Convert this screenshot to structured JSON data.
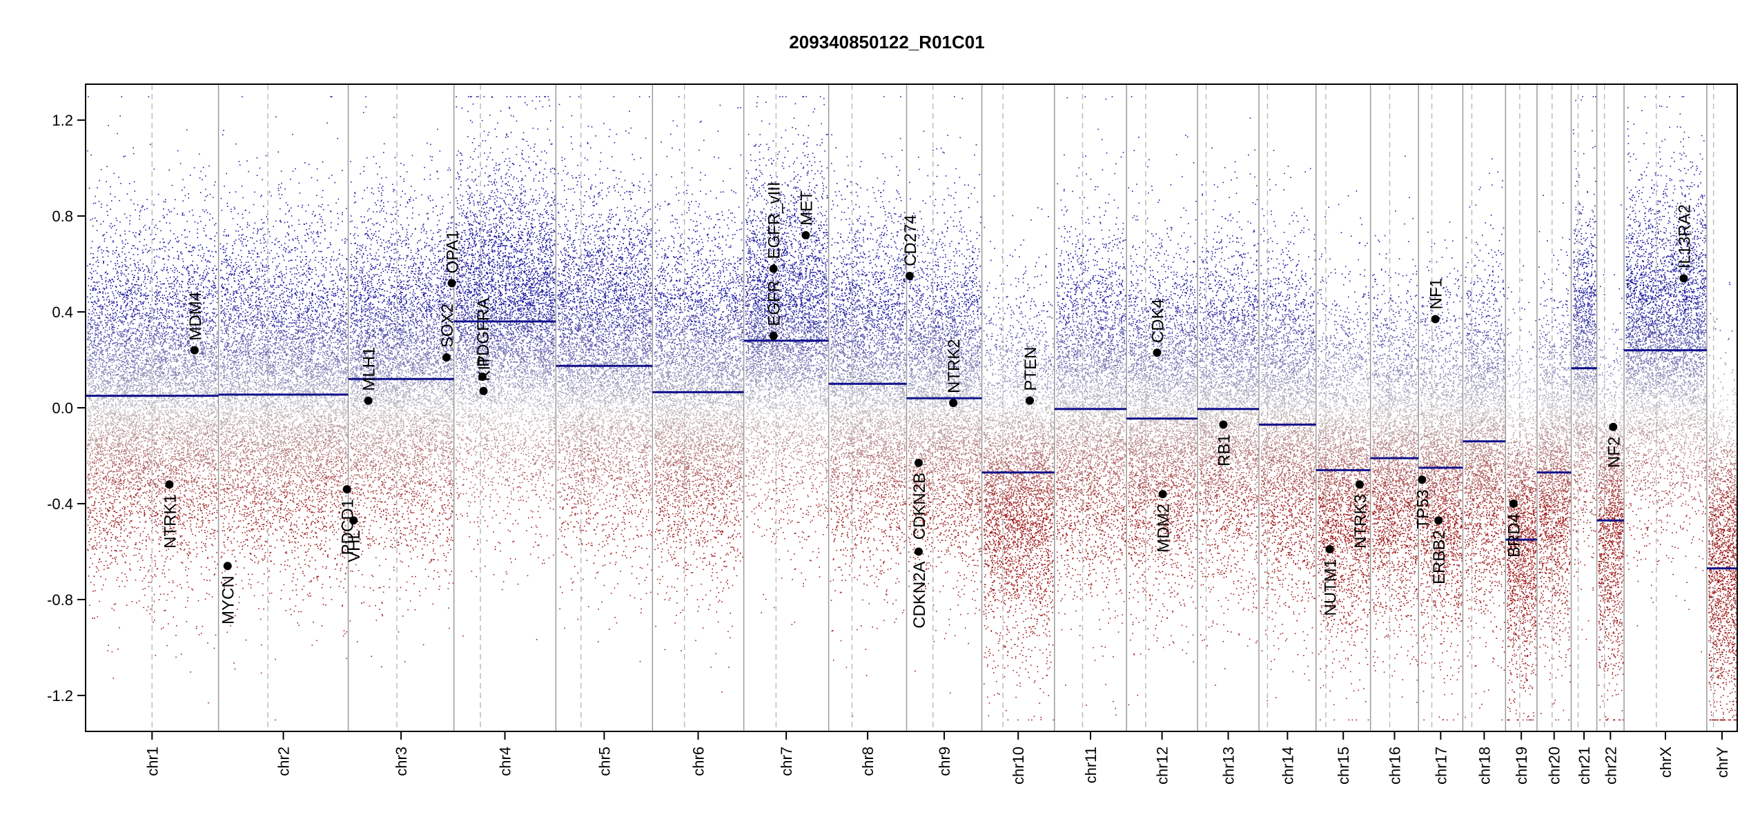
{
  "chart_data": {
    "type": "scatter",
    "title": "209340850122_R01C01",
    "xlabel": "",
    "ylabel": "",
    "ylim": [
      -1.35,
      1.35
    ],
    "yticks": [
      -1.2,
      -0.8,
      -0.4,
      0.0,
      0.4,
      0.8,
      1.2
    ],
    "ytick_labels": [
      "-1.2",
      "-0.8",
      "-0.4",
      "0.0",
      "0.4",
      "0.8",
      "1.2"
    ],
    "grid": false,
    "colors": {
      "gain": "#1a1aa0",
      "loss": "#a01a1a",
      "neutral": "#b0b0b0",
      "segment": "#10108a",
      "boundary": "#9a9a9a",
      "centromere": "#bdbdbd",
      "gene": "#000000"
    },
    "chromosomes": [
      {
        "name": "chr1",
        "size": 249,
        "cen": 0.5,
        "seg": 0.05,
        "bias": 0.05
      },
      {
        "name": "chr2",
        "size": 243,
        "cen": 0.38,
        "seg": 0.055,
        "bias": 0.05
      },
      {
        "name": "chr3",
        "size": 198,
        "cen": 0.46,
        "seg": 0.12,
        "bias": 0.12
      },
      {
        "name": "chr4",
        "size": 191,
        "cen": 0.26,
        "seg": 0.36,
        "bias": 0.33
      },
      {
        "name": "chr5",
        "size": 181,
        "cen": 0.26,
        "seg": 0.175,
        "bias": 0.17
      },
      {
        "name": "chr6",
        "size": 171,
        "cen": 0.35,
        "seg": 0.065,
        "bias": 0.06
      },
      {
        "name": "chr7",
        "size": 159,
        "cen": 0.38,
        "seg": 0.28,
        "bias": 0.28
      },
      {
        "name": "chr8",
        "size": 146,
        "cen": 0.3,
        "seg": 0.1,
        "bias": 0.09
      },
      {
        "name": "chr9",
        "size": 141,
        "cen": 0.35,
        "seg": 0.04,
        "bias": 0.03
      },
      {
        "name": "chr10",
        "size": 136,
        "cen": 0.29,
        "seg": -0.27,
        "bias": -0.28
      },
      {
        "name": "chr11",
        "size": 135,
        "cen": 0.39,
        "seg": -0.005,
        "bias": 0.0
      },
      {
        "name": "chr12",
        "size": 133,
        "cen": 0.27,
        "seg": -0.045,
        "bias": -0.05
      },
      {
        "name": "chr13",
        "size": 115,
        "cen": 0.14,
        "seg": -0.005,
        "bias": 0.0
      },
      {
        "name": "chr14",
        "size": 107,
        "cen": 0.15,
        "seg": -0.07,
        "bias": -0.07
      },
      {
        "name": "chr15",
        "size": 102,
        "cen": 0.18,
        "seg": -0.26,
        "bias": -0.26
      },
      {
        "name": "chr16",
        "size": 90,
        "cen": 0.4,
        "seg": -0.21,
        "bias": -0.2
      },
      {
        "name": "chr17",
        "size": 83,
        "cen": 0.3,
        "seg": -0.25,
        "bias": -0.24
      },
      {
        "name": "chr18",
        "size": 80,
        "cen": 0.21,
        "seg": -0.14,
        "bias": -0.13
      },
      {
        "name": "chr19",
        "size": 59,
        "cen": 0.45,
        "seg": -0.55,
        "bias": -0.5
      },
      {
        "name": "chr20",
        "size": 64,
        "cen": 0.44,
        "seg": -0.27,
        "bias": -0.27
      },
      {
        "name": "chr21",
        "size": 48,
        "cen": 0.27,
        "seg": 0.165,
        "bias": 0.15
      },
      {
        "name": "chr22",
        "size": 51,
        "cen": 0.28,
        "seg": -0.47,
        "bias": -0.45
      },
      {
        "name": "chrX",
        "size": 155,
        "cen": 0.39,
        "seg": 0.24,
        "bias": 0.24
      },
      {
        "name": "chrY",
        "size": 57,
        "cen": 0.22,
        "seg": -0.67,
        "bias": -0.6
      }
    ],
    "genes": [
      {
        "name": "NTRK1",
        "chr": "chr1",
        "pos": 0.63,
        "value": -0.32,
        "label": "below"
      },
      {
        "name": "MDM4",
        "chr": "chr1",
        "pos": 0.82,
        "value": 0.24,
        "label": "above"
      },
      {
        "name": "MYCN",
        "chr": "chr2",
        "pos": 0.07,
        "value": -0.66,
        "label": "below"
      },
      {
        "name": "PDCD1",
        "chr": "chr2",
        "pos": 0.99,
        "value": -0.34,
        "label": "below"
      },
      {
        "name": "VHL",
        "chr": "chr3",
        "pos": 0.05,
        "value": -0.47,
        "label": "below"
      },
      {
        "name": "MLH1",
        "chr": "chr3",
        "pos": 0.19,
        "value": 0.03,
        "label": "above"
      },
      {
        "name": "SOX2",
        "chr": "chr3",
        "pos": 0.93,
        "value": 0.21,
        "label": "above"
      },
      {
        "name": "OPA1",
        "chr": "chr3",
        "pos": 0.98,
        "value": 0.52,
        "label": "above"
      },
      {
        "name": "PDGFRA",
        "chr": "chr4",
        "pos": 0.28,
        "value": 0.13,
        "label": "above"
      },
      {
        "name": "KIT",
        "chr": "chr4",
        "pos": 0.29,
        "value": 0.07,
        "label": "above"
      },
      {
        "name": "EGFR",
        "chr": "chr7",
        "pos": 0.35,
        "value": 0.3,
        "label": "above"
      },
      {
        "name": "EGFR_vIII",
        "chr": "chr7",
        "pos": 0.35,
        "value": 0.58,
        "label": "above"
      },
      {
        "name": "MET",
        "chr": "chr7",
        "pos": 0.73,
        "value": 0.72,
        "label": "above"
      },
      {
        "name": "CD274",
        "chr": "chr9",
        "pos": 0.04,
        "value": 0.55,
        "label": "above"
      },
      {
        "name": "CDKN2A",
        "chr": "chr9",
        "pos": 0.16,
        "value": -0.6,
        "label": "below"
      },
      {
        "name": "CDKN2B",
        "chr": "chr9",
        "pos": 0.16,
        "value": -0.23,
        "label": "below"
      },
      {
        "name": "NTRK2",
        "chr": "chr9",
        "pos": 0.62,
        "value": 0.02,
        "label": "above"
      },
      {
        "name": "PTEN",
        "chr": "chr10",
        "pos": 0.66,
        "value": 0.03,
        "label": "above"
      },
      {
        "name": "CDK4",
        "chr": "chr12",
        "pos": 0.43,
        "value": 0.23,
        "label": "above"
      },
      {
        "name": "MDM2",
        "chr": "chr12",
        "pos": 0.51,
        "value": -0.36,
        "label": "below"
      },
      {
        "name": "RB1",
        "chr": "chr13",
        "pos": 0.42,
        "value": -0.07,
        "label": "below"
      },
      {
        "name": "NUTM1",
        "chr": "chr15",
        "pos": 0.25,
        "value": -0.59,
        "label": "below"
      },
      {
        "name": "NTRK3",
        "chr": "chr15",
        "pos": 0.8,
        "value": -0.32,
        "label": "below"
      },
      {
        "name": "TP53",
        "chr": "chr17",
        "pos": 0.08,
        "value": -0.3,
        "label": "below"
      },
      {
        "name": "NF1",
        "chr": "chr17",
        "pos": 0.38,
        "value": 0.37,
        "label": "above"
      },
      {
        "name": "ERBB2",
        "chr": "chr17",
        "pos": 0.45,
        "value": -0.47,
        "label": "below"
      },
      {
        "name": "BRD4",
        "chr": "chr19",
        "pos": 0.25,
        "value": -0.4,
        "label": "below"
      },
      {
        "name": "NF2",
        "chr": "chr22",
        "pos": 0.6,
        "value": -0.08,
        "label": "below"
      },
      {
        "name": "IL13RA2",
        "chr": "chrX",
        "pos": 0.72,
        "value": 0.54,
        "label": "above"
      }
    ]
  }
}
